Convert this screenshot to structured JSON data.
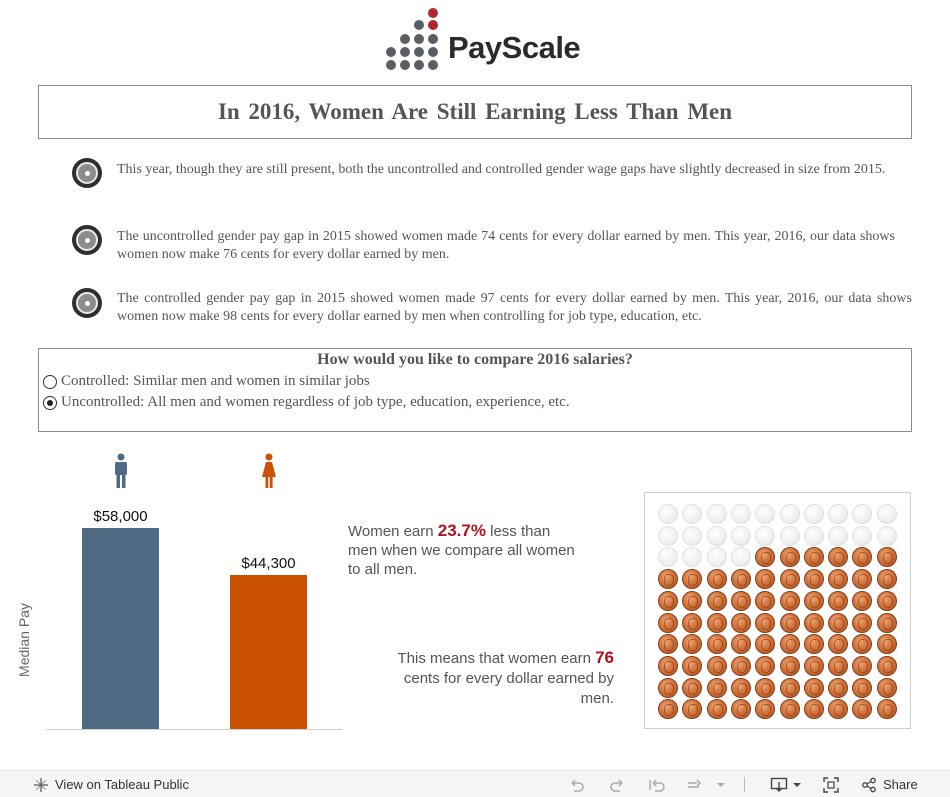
{
  "logo": {
    "text": "PayScale"
  },
  "title": "In 2016, Women Are Still Earning Less Than Men",
  "bullets": [
    "This year, though they are still present, both the uncontrolled and controlled gender wage gaps have slightly decreased in size from 2015.",
    "The uncontrolled gender pay gap in 2015 showed women made 74 cents for every dollar earned by men. This year, 2016, our data shows women now make 76 cents for every dollar earned by men.",
    "The controlled gender pay gap in 2015 showed women made 97 cents for every dollar earned by men. This year, 2016, our data shows women now make 98 cents for every dollar earned by men when controlling for job type, education, etc."
  ],
  "compare": {
    "question": "How would you like to compare 2016 salaries?",
    "options": [
      {
        "label": "Controlled: Similar men and women in similar jobs",
        "selected": false
      },
      {
        "label": "Uncontrolled: All men and women regardless of job type, education, experience, etc.",
        "selected": true
      }
    ]
  },
  "chart_data": {
    "type": "bar",
    "categories": [
      "Men",
      "Women"
    ],
    "values": [
      58000,
      44300
    ],
    "value_labels": [
      "$58,000",
      "$44,300"
    ],
    "colors": [
      "#4e6a84",
      "#c95100"
    ],
    "ylabel": "Median Pay",
    "ylim": [
      0,
      58000
    ],
    "grid": false,
    "category_icons": [
      "male-icon",
      "female-icon"
    ]
  },
  "annotation1": {
    "pre": "Women earn ",
    "highlight": "23.7%",
    "post": " less than men when we compare all women to all men."
  },
  "annotation2": {
    "pre": "This means that women earn ",
    "highlight": "76",
    "post": " cents for every dollar earned by men."
  },
  "pennies": {
    "total": 100,
    "filled": 76,
    "colors": {
      "penny": "#d2733c",
      "empty": "#f1f1f1"
    }
  },
  "footer": {
    "view_label": "View on Tableau Public",
    "share_label": "Share",
    "icons": [
      "tableau-icon",
      "undo-icon",
      "redo-icon",
      "revert-icon",
      "refresh-icon",
      "pause-icon",
      "download-icon",
      "fullscreen-icon",
      "share-icon"
    ]
  },
  "accent": {
    "highlight": "#b0131e",
    "brand": "#b0272d"
  }
}
